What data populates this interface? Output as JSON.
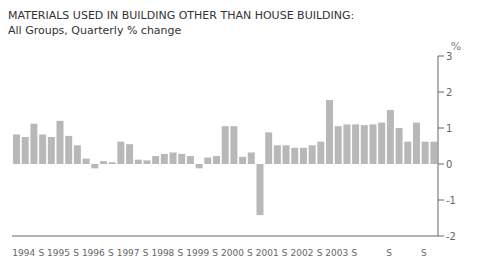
{
  "chart_data": {
    "type": "bar",
    "title": "MATERIALS USED IN BUILDING OTHER THAN HOUSE BUILDING:",
    "subtitle": "All Groups, Quarterly % change",
    "y_label": "%",
    "color": "#b8b8b8",
    "ylim": [
      -2.0,
      3.0
    ],
    "yticks": [
      -2,
      -1,
      0,
      1,
      2,
      3
    ],
    "grid": false,
    "categories": [
      "1994",
      null,
      null,
      "S",
      "1995",
      null,
      null,
      "S",
      "1996",
      null,
      null,
      "S",
      "1997",
      null,
      null,
      "S",
      "1998",
      null,
      null,
      "S",
      "1999",
      null,
      null,
      "S",
      "2000",
      null,
      null,
      "S",
      "2001",
      null,
      null,
      "S",
      "2002",
      null,
      null,
      "S",
      "2003",
      null,
      null,
      "S",
      null,
      null,
      null,
      "S",
      null,
      null,
      null,
      "S",
      null
    ],
    "values": [
      0.82,
      0.75,
      1.12,
      0.82,
      0.75,
      1.2,
      0.78,
      0.52,
      0.15,
      -0.12,
      0.08,
      0.05,
      0.62,
      0.55,
      0.12,
      0.1,
      0.22,
      0.28,
      0.32,
      0.28,
      0.22,
      -0.12,
      0.18,
      0.22,
      1.05,
      1.05,
      0.2,
      0.32,
      -1.42,
      0.88,
      0.52,
      0.52,
      0.45,
      0.45,
      0.52,
      0.62,
      1.78,
      1.05,
      1.1,
      1.1,
      1.08,
      1.1,
      1.15,
      1.5,
      1.0,
      0.62,
      1.15,
      0.62,
      0.62
    ]
  }
}
